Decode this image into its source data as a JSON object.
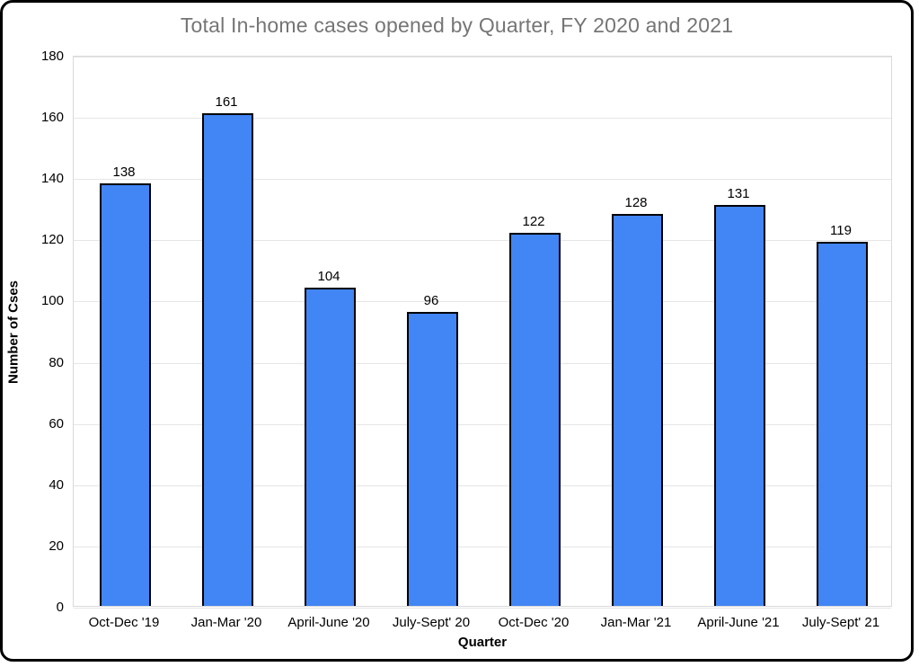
{
  "window": {
    "background_color": "#ffffff",
    "border_color": "#000000"
  },
  "chart_data": {
    "type": "bar",
    "title": "Total In-home cases opened by Quarter, FY 2020 and 2021",
    "xlabel": "Quarter",
    "ylabel": "Number of Cses",
    "categories": [
      "Oct-Dec '19",
      "Jan-Mar '20",
      "April-June '20",
      "July-Sept' 20",
      "Oct-Dec '20",
      "Jan-Mar '21",
      "April-June '21",
      "July-Sept' 21"
    ],
    "values": [
      138,
      161,
      104,
      96,
      122,
      128,
      131,
      119
    ],
    "ylim": [
      0,
      180
    ],
    "yticks": [
      0,
      20,
      40,
      60,
      80,
      100,
      120,
      140,
      160,
      180
    ],
    "grid": true,
    "legend": false,
    "data_labels_shown": true,
    "colors": {
      "bar_fill": "#4285F4",
      "bar_border": "#000000",
      "title_text": "#757575",
      "axis_text": "#000000",
      "gridline": "#e6e6e6",
      "plot_border": "#d9d9d9"
    }
  }
}
